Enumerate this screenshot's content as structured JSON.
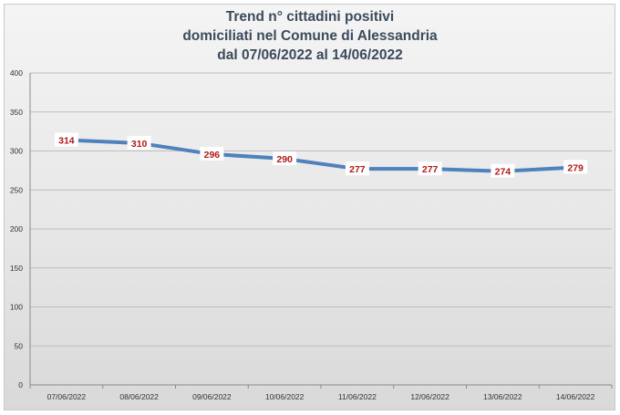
{
  "chart_data": {
    "type": "line",
    "title": [
      "Trend n° cittadini positivi",
      "domiciliati nel Comune di Alessandria",
      "dal 07/06/2022 al 14/06/2022"
    ],
    "categories": [
      "07/06/2022",
      "08/06/2022",
      "09/06/2022",
      "10/06/2022",
      "11/06/2022",
      "12/06/2022",
      "13/06/2022",
      "14/06/2022"
    ],
    "series": [
      {
        "values": [
          314,
          310,
          296,
          290,
          277,
          277,
          274,
          279
        ],
        "color": "#4f81bd"
      }
    ],
    "ylim": [
      0,
      400
    ],
    "yticks": [
      0,
      50,
      100,
      150,
      200,
      250,
      300,
      350,
      400
    ],
    "grid": true,
    "legend": "none",
    "label_color": "#b01919"
  }
}
